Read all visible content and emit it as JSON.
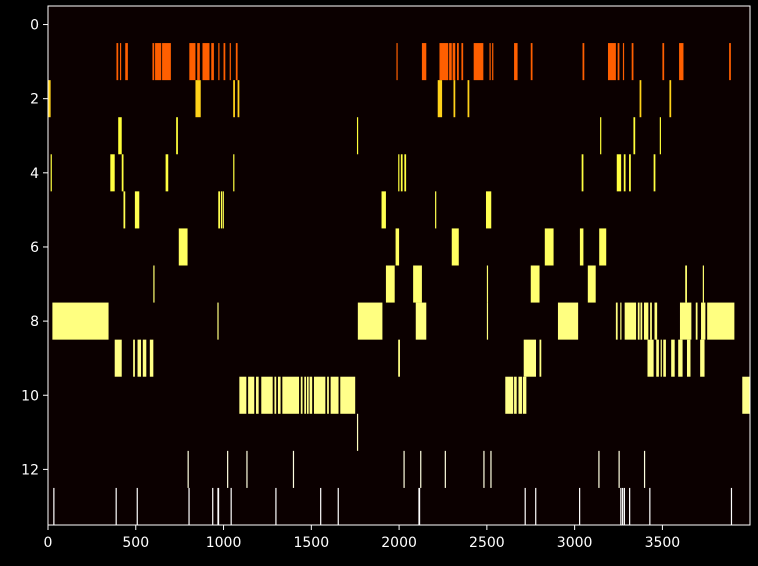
{
  "chart_data": {
    "type": "heatmap",
    "title": "",
    "xlabel": "",
    "ylabel": "",
    "xlim": [
      0,
      3999
    ],
    "ylim": [
      13.5,
      -0.5
    ],
    "x_ticks": [
      0,
      500,
      1000,
      1500,
      2000,
      2500,
      3000,
      3500
    ],
    "y_ticks": [
      0,
      2,
      4,
      6,
      8,
      10,
      12
    ],
    "x_tick_labels": [
      "0",
      "500",
      "1000",
      "1500",
      "2000",
      "2500",
      "3000",
      "3500"
    ],
    "y_tick_labels": [
      "0",
      "2",
      "4",
      "6",
      "8",
      "10",
      "12"
    ],
    "colormap": "hot",
    "colors": {
      "background": "#000000",
      "cells": "#0b0000",
      "row1": "#ff5f00",
      "bright": "#ffff8a",
      "white": "#ffffff"
    },
    "rows": [
      {
        "row": 1,
        "color": "#ff5f00",
        "spans": [
          [
            390,
            400
          ],
          [
            410,
            415
          ],
          [
            440,
            455
          ],
          [
            595,
            605
          ],
          [
            610,
            645
          ],
          [
            650,
            700
          ],
          [
            805,
            840
          ],
          [
            850,
            865
          ],
          [
            880,
            920
          ],
          [
            930,
            945
          ],
          [
            970,
            975
          ],
          [
            1000,
            1010
          ],
          [
            1035,
            1040
          ],
          [
            1070,
            1080
          ],
          [
            1985,
            1990
          ],
          [
            2130,
            2155
          ],
          [
            2230,
            2280
          ],
          [
            2285,
            2300
          ],
          [
            2305,
            2320
          ],
          [
            2330,
            2340
          ],
          [
            2355,
            2365
          ],
          [
            2425,
            2480
          ],
          [
            2515,
            2520
          ],
          [
            2530,
            2535
          ],
          [
            2655,
            2675
          ],
          [
            2750,
            2760
          ],
          [
            3045,
            3055
          ],
          [
            3190,
            3235
          ],
          [
            3245,
            3255
          ],
          [
            3275,
            3280
          ],
          [
            3325,
            3335
          ],
          [
            3500,
            3510
          ],
          [
            3595,
            3620
          ],
          [
            3880,
            3890
          ]
        ]
      },
      {
        "row": 2,
        "color": "#ffd21a",
        "spans": [
          [
            0,
            15
          ],
          [
            840,
            870
          ],
          [
            1055,
            1065
          ],
          [
            1080,
            1090
          ],
          [
            2220,
            2245
          ],
          [
            2310,
            2320
          ],
          [
            2390,
            2400
          ],
          [
            3370,
            3380
          ],
          [
            3540,
            3550
          ]
        ]
      },
      {
        "row": 3,
        "color": "#ffff3a",
        "spans": [
          [
            400,
            420
          ],
          [
            730,
            740
          ],
          [
            1760,
            1765
          ],
          [
            3145,
            3150
          ],
          [
            3335,
            3345
          ],
          [
            3485,
            3490
          ]
        ]
      },
      {
        "row": 4,
        "color": "#ffff40",
        "spans": [
          [
            15,
            20
          ],
          [
            355,
            380
          ],
          [
            420,
            430
          ],
          [
            670,
            685
          ],
          [
            1055,
            1060
          ],
          [
            1995,
            2000
          ],
          [
            2010,
            2020
          ],
          [
            2030,
            2040
          ],
          [
            3040,
            3050
          ],
          [
            3240,
            3265
          ],
          [
            3280,
            3290
          ],
          [
            3310,
            3320
          ],
          [
            3450,
            3460
          ]
        ]
      },
      {
        "row": 5,
        "color": "#ffff50",
        "spans": [
          [
            430,
            440
          ],
          [
            495,
            520
          ],
          [
            970,
            980
          ],
          [
            985,
            990
          ],
          [
            995,
            1000
          ],
          [
            1900,
            1925
          ],
          [
            2205,
            2210
          ],
          [
            2495,
            2525
          ]
        ]
      },
      {
        "row": 6,
        "color": "#ffff60",
        "spans": [
          [
            745,
            795
          ],
          [
            1980,
            2000
          ],
          [
            2300,
            2340
          ],
          [
            2830,
            2880
          ],
          [
            3030,
            3050
          ],
          [
            3140,
            3180
          ]
        ]
      },
      {
        "row": 7,
        "color": "#ffff70",
        "spans": [
          [
            600,
            605
          ],
          [
            1925,
            1975
          ],
          [
            2080,
            2130
          ],
          [
            2500,
            2505
          ],
          [
            2750,
            2800
          ],
          [
            3075,
            3120
          ],
          [
            3630,
            3640
          ],
          [
            3730,
            3735
          ]
        ]
      },
      {
        "row": 8,
        "color": "#ffff80",
        "spans": [
          [
            25,
            345
          ],
          [
            965,
            970
          ],
          [
            1765,
            1905
          ],
          [
            2095,
            2155
          ],
          [
            2500,
            2505
          ],
          [
            2905,
            3020
          ],
          [
            3235,
            3245
          ],
          [
            3260,
            3265
          ],
          [
            3285,
            3350
          ],
          [
            3360,
            3370
          ],
          [
            3375,
            3385
          ],
          [
            3395,
            3420
          ],
          [
            3430,
            3440
          ],
          [
            3455,
            3470
          ],
          [
            3600,
            3665
          ],
          [
            3690,
            3700
          ],
          [
            3720,
            3745
          ],
          [
            3755,
            3910
          ]
        ]
      },
      {
        "row": 9,
        "color": "#ffff85",
        "spans": [
          [
            380,
            420
          ],
          [
            485,
            495
          ],
          [
            510,
            530
          ],
          [
            540,
            560
          ],
          [
            580,
            600
          ],
          [
            1995,
            2005
          ],
          [
            2710,
            2780
          ],
          [
            2800,
            2810
          ],
          [
            3415,
            3450
          ],
          [
            3465,
            3480
          ],
          [
            3490,
            3495
          ],
          [
            3505,
            3520
          ],
          [
            3550,
            3570
          ],
          [
            3590,
            3615
          ],
          [
            3640,
            3660
          ],
          [
            3715,
            3740
          ]
        ]
      },
      {
        "row": 10,
        "color": "#ffff8a",
        "spans": [
          [
            1090,
            1130
          ],
          [
            1140,
            1175
          ],
          [
            1185,
            1200
          ],
          [
            1215,
            1280
          ],
          [
            1290,
            1300
          ],
          [
            1310,
            1325
          ],
          [
            1335,
            1430
          ],
          [
            1440,
            1450
          ],
          [
            1460,
            1470
          ],
          [
            1475,
            1485
          ],
          [
            1490,
            1505
          ],
          [
            1515,
            1580
          ],
          [
            1590,
            1600
          ],
          [
            1610,
            1655
          ],
          [
            1665,
            1750
          ],
          [
            2605,
            2650
          ],
          [
            2655,
            2670
          ],
          [
            2680,
            2700
          ],
          [
            2705,
            2725
          ],
          [
            3955,
            3999
          ]
        ]
      },
      {
        "row": 11,
        "color": "#ffffc0",
        "spans": [
          [
            1760,
            1765
          ]
        ]
      },
      {
        "row": 12,
        "color": "#ffffe0",
        "spans": [
          [
            795,
            800
          ],
          [
            1020,
            1025
          ],
          [
            1130,
            1135
          ],
          [
            1395,
            1400
          ],
          [
            2025,
            2030
          ],
          [
            2120,
            2125
          ],
          [
            2260,
            2265
          ],
          [
            2480,
            2485
          ],
          [
            2520,
            2525
          ],
          [
            3135,
            3140
          ],
          [
            3250,
            3255
          ],
          [
            3395,
            3400
          ]
        ]
      },
      {
        "row": 13,
        "color": "#ffffff",
        "spans": [
          [
            30,
            35
          ],
          [
            385,
            390
          ],
          [
            505,
            510
          ],
          [
            800,
            805
          ],
          [
            935,
            940
          ],
          [
            965,
            975
          ],
          [
            1040,
            1045
          ],
          [
            1295,
            1300
          ],
          [
            1550,
            1555
          ],
          [
            1650,
            1655
          ],
          [
            2110,
            2120
          ],
          [
            2715,
            2720
          ],
          [
            2775,
            2780
          ],
          [
            3025,
            3030
          ],
          [
            3260,
            3265
          ],
          [
            3270,
            3275
          ],
          [
            3280,
            3285
          ],
          [
            3310,
            3315
          ],
          [
            3425,
            3430
          ],
          [
            3890,
            3895
          ]
        ]
      }
    ]
  }
}
